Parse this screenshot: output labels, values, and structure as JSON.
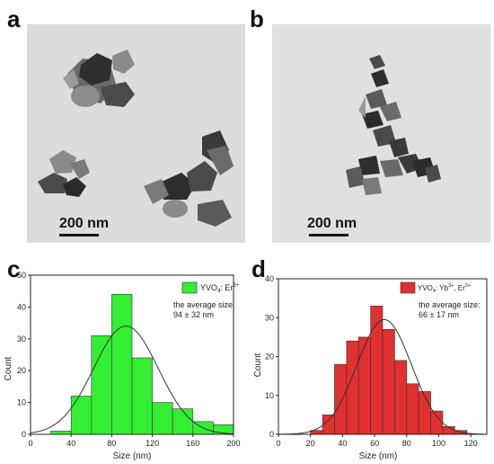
{
  "panels": {
    "a": {
      "letter": "a",
      "scale_label": "200 nm"
    },
    "b": {
      "letter": "b",
      "scale_label": "200 nm"
    },
    "c": {
      "letter": "c"
    },
    "d": {
      "letter": "d"
    }
  },
  "colors": {
    "green_bar": "#33ee33",
    "red_bar": "#e03030",
    "fit_line": "#333333",
    "axis": "#222222"
  },
  "chart_data": [
    {
      "id": "c",
      "type": "bar",
      "xlabel": "Size (nm)",
      "ylabel": "Count",
      "xlim": [
        0,
        200
      ],
      "ylim": [
        0,
        50
      ],
      "xticks": [
        "0",
        "40",
        "80",
        "120",
        "160",
        "200"
      ],
      "xtick_values": [
        0,
        40,
        80,
        120,
        160,
        200
      ],
      "yticks": [
        "0",
        "10",
        "20",
        "30",
        "40",
        "50"
      ],
      "ytick_values": [
        0,
        10,
        20,
        30,
        40,
        50
      ],
      "bin_width": 20,
      "bins": [
        {
          "start": 20,
          "value": 1
        },
        {
          "start": 40,
          "value": 12
        },
        {
          "start": 60,
          "value": 31
        },
        {
          "start": 80,
          "value": 44
        },
        {
          "start": 100,
          "value": 24
        },
        {
          "start": 120,
          "value": 10
        },
        {
          "start": 140,
          "value": 8
        },
        {
          "start": 160,
          "value": 4
        },
        {
          "start": 180,
          "value": 3
        }
      ],
      "fit": {
        "type": "gaussian",
        "mean": 94,
        "sd": 32,
        "peak": 34
      },
      "legend": {
        "label_main": "YVO",
        "label_sub": "4",
        "label_rest": ": Er",
        "label_sup": "3+"
      },
      "annotation_line1": "the average size:",
      "annotation_line2": "94 ± 32 nm"
    },
    {
      "id": "d",
      "type": "bar",
      "xlabel": "Size (nm)",
      "ylabel": "Count",
      "xlim": [
        0,
        130
      ],
      "ylim": [
        0,
        40
      ],
      "xticks": [
        "0",
        "20",
        "40",
        "60",
        "80",
        "100",
        "120"
      ],
      "xtick_values": [
        0,
        20,
        40,
        60,
        80,
        100,
        120
      ],
      "yticks": [
        "0",
        "10",
        "20",
        "30",
        "40"
      ],
      "ytick_values": [
        0,
        10,
        20,
        30,
        40
      ],
      "bin_width": 7.5,
      "bins": [
        {
          "start": 20,
          "value": 1
        },
        {
          "start": 27.5,
          "value": 5
        },
        {
          "start": 35,
          "value": 18
        },
        {
          "start": 42.5,
          "value": 24
        },
        {
          "start": 50,
          "value": 25
        },
        {
          "start": 57.5,
          "value": 33
        },
        {
          "start": 65,
          "value": 27
        },
        {
          "start": 72.5,
          "value": 19
        },
        {
          "start": 80,
          "value": 13
        },
        {
          "start": 87.5,
          "value": 11
        },
        {
          "start": 95,
          "value": 6
        },
        {
          "start": 102.5,
          "value": 2
        },
        {
          "start": 110,
          "value": 1
        }
      ],
      "fit": {
        "type": "gaussian",
        "mean": 66,
        "sd": 17,
        "peak": 29.5
      },
      "legend": {
        "label_main": "YVO",
        "label_sub": "4",
        "label_rest": ": Yb",
        "label_sup": "3+",
        "label_rest2": ", Er",
        "label_sup2": "3+"
      },
      "annotation_line1": "the average size:",
      "annotation_line2": "66 ± 17 nm"
    }
  ]
}
